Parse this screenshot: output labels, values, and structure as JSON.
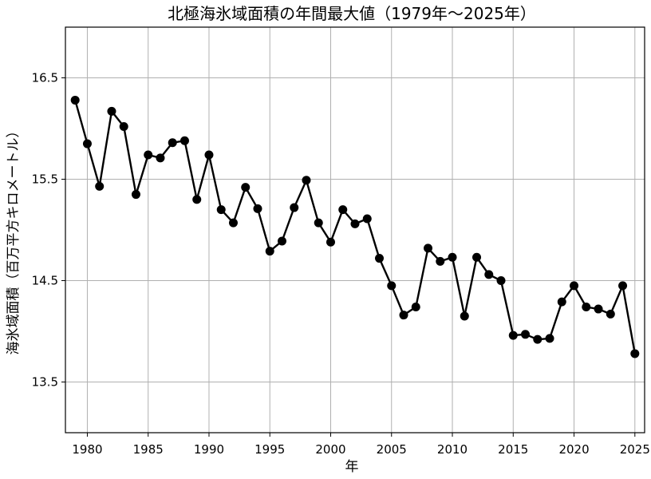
{
  "chart_data": {
    "type": "line",
    "title": "北極海氷域面積の年間最大値（1979年～2025年）",
    "xlabel": "年",
    "ylabel": "海氷域面積（百万平方キロメートル）",
    "xlim": [
      1978.2,
      2025.8
    ],
    "ylim": [
      13.0,
      17.0
    ],
    "grid": true,
    "xticks": [
      1980,
      1985,
      1990,
      1995,
      2000,
      2005,
      2010,
      2015,
      2020,
      2025
    ],
    "xtick_labels": [
      "1980",
      "1985",
      "1990",
      "1995",
      "2000",
      "2005",
      "2010",
      "2015",
      "2020",
      "2025"
    ],
    "yticks": [
      13.5,
      14.5,
      15.5,
      16.5
    ],
    "ytick_labels": [
      "13.5",
      "14.5",
      "15.5",
      "16.5"
    ],
    "x": [
      1979,
      1980,
      1981,
      1982,
      1983,
      1984,
      1985,
      1986,
      1987,
      1988,
      1989,
      1990,
      1991,
      1992,
      1993,
      1994,
      1995,
      1996,
      1997,
      1998,
      1999,
      2000,
      2001,
      2002,
      2003,
      2004,
      2005,
      2006,
      2007,
      2008,
      2009,
      2010,
      2011,
      2012,
      2013,
      2014,
      2015,
      2016,
      2017,
      2018,
      2019,
      2020,
      2021,
      2022,
      2023,
      2024,
      2025
    ],
    "y": [
      16.28,
      15.85,
      15.43,
      16.17,
      16.02,
      15.35,
      15.74,
      15.71,
      15.86,
      15.88,
      15.3,
      15.74,
      15.2,
      15.07,
      15.42,
      15.21,
      14.79,
      14.89,
      15.22,
      15.49,
      15.07,
      14.88,
      15.2,
      15.06,
      15.11,
      14.72,
      14.45,
      14.16,
      14.24,
      14.82,
      14.69,
      14.73,
      14.15,
      14.73,
      14.56,
      14.5,
      13.96,
      13.97,
      13.92,
      13.93,
      14.29,
      14.45,
      14.24,
      14.22,
      14.17,
      14.45,
      13.78
    ]
  }
}
